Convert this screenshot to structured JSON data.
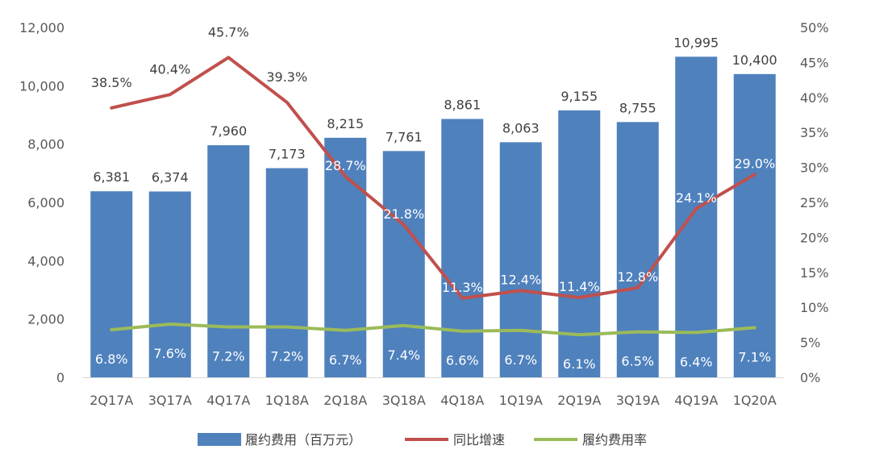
{
  "chart_data": {
    "type": "bar",
    "categories": [
      "2Q17A",
      "3Q17A",
      "4Q17A",
      "1Q18A",
      "2Q18A",
      "3Q18A",
      "4Q18A",
      "1Q19A",
      "2Q19A",
      "3Q19A",
      "4Q19A",
      "1Q20A"
    ],
    "series": [
      {
        "name": "履约费用（百万元）",
        "type": "bar",
        "axis": "left",
        "color": "#4F81BD",
        "values": [
          6381,
          6374,
          7960,
          7173,
          8215,
          7761,
          8861,
          8063,
          9155,
          8755,
          10995,
          10400
        ],
        "labels": [
          "6,381",
          "6,374",
          "7,960",
          "7,173",
          "8,215",
          "7,761",
          "8,861",
          "8,063",
          "9,155",
          "8,755",
          "10,995",
          "10,400"
        ]
      },
      {
        "name": "同比增速",
        "type": "line",
        "axis": "right",
        "color": "#C0504D",
        "values": [
          38.5,
          40.4,
          45.7,
          39.3,
          28.7,
          21.8,
          11.3,
          12.4,
          11.4,
          12.8,
          24.1,
          29.0
        ],
        "labels": [
          "38.5%",
          "40.4%",
          "45.7%",
          "39.3%",
          "28.7%",
          "21.8%",
          "11.3%",
          "12.4%",
          "11.4%",
          "12.8%",
          "24.1%",
          "29.0%"
        ]
      },
      {
        "name": "履约费用率",
        "type": "line",
        "axis": "right",
        "color": "#9BBB59",
        "values": [
          6.8,
          7.6,
          7.2,
          7.2,
          6.7,
          7.4,
          6.6,
          6.7,
          6.1,
          6.5,
          6.4,
          7.1
        ],
        "labels": [
          "6.8%",
          "7.6%",
          "7.2%",
          "7.2%",
          "6.7%",
          "7.4%",
          "6.6%",
          "6.7%",
          "6.1%",
          "6.5%",
          "6.4%",
          "7.1%"
        ]
      }
    ],
    "y_left": {
      "range": [
        0,
        12000
      ],
      "ticks": [
        "0",
        "2,000",
        "4,000",
        "6,000",
        "8,000",
        "10,000",
        "12,000"
      ]
    },
    "y_right": {
      "range": [
        0,
        50
      ],
      "ticks": [
        "0%",
        "5%",
        "10%",
        "15%",
        "20%",
        "25%",
        "30%",
        "35%",
        "40%",
        "45%",
        "50%"
      ]
    },
    "grid": false,
    "legend": "bottom"
  }
}
